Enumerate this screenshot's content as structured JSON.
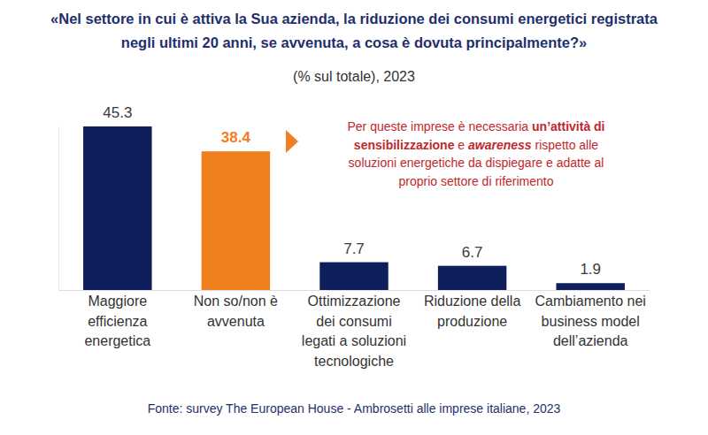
{
  "chart_data": {
    "type": "bar",
    "title": "«Nel settore in cui è attiva la Sua azienda, la riduzione dei consumi energetici registrata negli ultimi 20 anni, se avvenuta, a cosa è dovuta principalmente?»",
    "subtitle": "(% sul totale), 2023",
    "categories": [
      "Maggiore efficienza energetica",
      "Non so/non è avvenuta",
      "Ottimizzazione dei consumi legati a soluzioni tecnologiche",
      "Riduzione della produzione",
      "Cambiamento nei business model dell’azienda"
    ],
    "values": [
      45.3,
      38.4,
      7.7,
      6.7,
      1.9
    ],
    "colors": [
      "#0e1f5b",
      "#f07f1e",
      "#0e1f5b",
      "#0e1f5b",
      "#0e1f5b"
    ],
    "ylim": [
      0,
      45.3
    ],
    "yticks": [],
    "data_labels": true,
    "tick_labels": "x",
    "annotation": [
      [
        "Per queste imprese è necessaria ",
        "un’attività di"
      ],
      [
        "sensibilizzazione",
        " e ",
        "awareness",
        " rispetto alle"
      ],
      [
        "soluzioni energetiche da dispiegare e adatte al"
      ],
      [
        "proprio settore di riferimento"
      ]
    ],
    "source": "Fonte: survey The European House - Ambrosetti alle imprese italiane, 2023"
  }
}
